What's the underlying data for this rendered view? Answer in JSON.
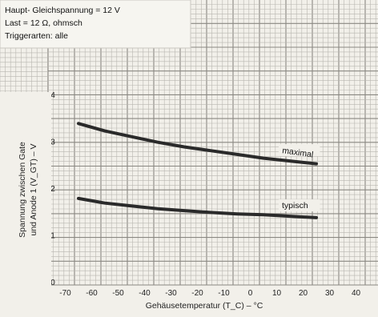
{
  "info_box": {
    "lines": [
      "Haupt- Gleichspannung = 12 V",
      "Last = 12 Ω, ohmsch",
      "Triggerarten: alle"
    ]
  },
  "chart_data": {
    "type": "line",
    "xlabel": "Gehäusetemperatur (T_C) – °C",
    "ylabel_line1": "Spannung zwischen Gate",
    "ylabel_line2": "und Anode 1 (V_GT) – V",
    "xlim": [
      -75,
      50
    ],
    "ylim": [
      0,
      4.5
    ],
    "x_ticks": [
      -70,
      -60,
      -50,
      -40,
      -30,
      -20,
      -10,
      0,
      10,
      20,
      30,
      40
    ],
    "x_tick_labels": [
      "-70",
      "-60",
      "-50",
      "-40",
      "-30",
      "-20",
      "-10",
      "0",
      "10",
      "20",
      "30",
      "40"
    ],
    "y_ticks": [
      0,
      1,
      2,
      3,
      4
    ],
    "y_tick_labels": [
      "0",
      "1",
      "2",
      "3",
      "4"
    ],
    "grid": true,
    "series": [
      {
        "name": "maximal",
        "x": [
          -65,
          -55,
          -45,
          -35,
          -25,
          -15,
          -5,
          5,
          15,
          25
        ],
        "y": [
          3.38,
          3.22,
          3.1,
          2.98,
          2.88,
          2.8,
          2.72,
          2.64,
          2.58,
          2.52
        ]
      },
      {
        "name": "typisch",
        "x": [
          -65,
          -55,
          -45,
          -35,
          -25,
          -15,
          -5,
          5,
          15,
          25
        ],
        "y": [
          1.78,
          1.68,
          1.62,
          1.56,
          1.52,
          1.48,
          1.45,
          1.43,
          1.4,
          1.37
        ]
      }
    ]
  }
}
